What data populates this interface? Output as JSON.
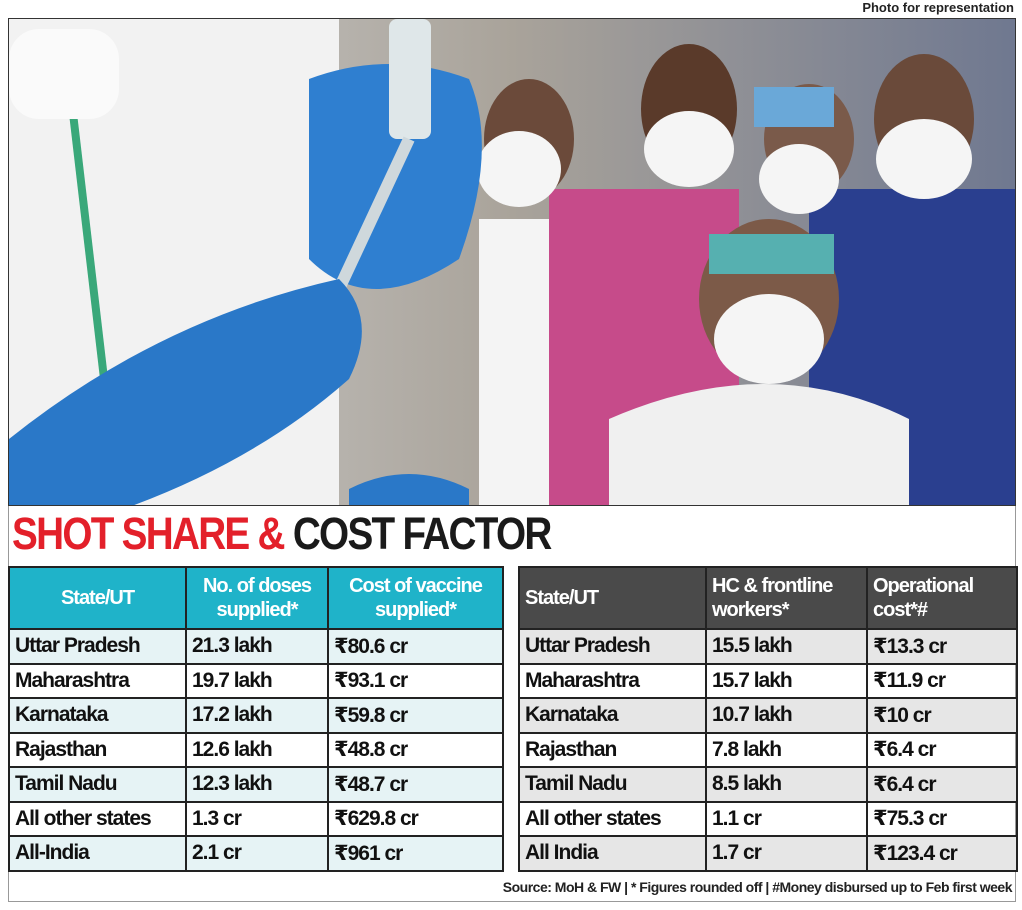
{
  "photo_caption": "Photo for representation",
  "title": {
    "part1": "SHOT SHARE &",
    "part2": "COST FACTOR"
  },
  "left_table": {
    "headers": [
      "State/UT",
      "No. of doses supplied*",
      "Cost of vaccine supplied*"
    ],
    "rows": [
      [
        "Uttar Pradesh",
        "21.3 lakh",
        "₹80.6 cr"
      ],
      [
        "Maharashtra",
        "19.7 lakh",
        "₹93.1 cr"
      ],
      [
        "Karnataka",
        "17.2 lakh",
        "₹59.8 cr"
      ],
      [
        "Rajasthan",
        "12.6 lakh",
        "₹48.8 cr"
      ],
      [
        "Tamil Nadu",
        "12.3 lakh",
        "₹48.7 cr"
      ],
      [
        "All other states",
        "1.3 cr",
        "₹629.8 cr"
      ],
      [
        "All-India",
        "2.1 cr",
        "₹961 cr"
      ]
    ]
  },
  "right_table": {
    "headers": [
      "State/UT",
      "HC & frontline workers*",
      "Operational cost*#"
    ],
    "rows": [
      [
        "Uttar Pradesh",
        "15.5 lakh",
        "₹13.3 cr"
      ],
      [
        "Maharashtra",
        "15.7 lakh",
        "₹11.9 cr"
      ],
      [
        "Karnataka",
        "10.7 lakh",
        "₹10 cr"
      ],
      [
        "Rajasthan",
        "7.8 lakh",
        "₹6.4 cr"
      ],
      [
        "Tamil Nadu",
        "8.5 lakh",
        "₹6.4 cr"
      ],
      [
        "All other states",
        "1.1 cr",
        "₹75.3 cr"
      ],
      [
        "All India",
        "1.7 cr",
        "₹123.4 cr"
      ]
    ]
  },
  "source": "Source: MoH & FW | * Figures rounded off | #Money disbursed up to Feb first week"
}
